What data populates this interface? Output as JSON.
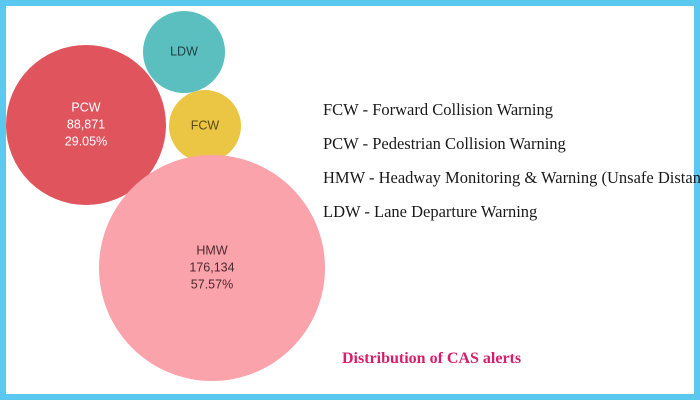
{
  "chart_data": {
    "type": "bubble",
    "title": "",
    "bubbles": [
      {
        "name": "LDW",
        "value_text": "",
        "percent_text": "",
        "color": "#5bbfbf",
        "text_color": "#1f3f3f"
      },
      {
        "name": "PCW",
        "value_text": "88,871",
        "percent_text": "29.05%",
        "color": "#e0555d",
        "text_color": "#ffffff"
      },
      {
        "name": "FCW",
        "value_text": "",
        "percent_text": "",
        "color": "#ebc644",
        "text_color": "#5a4a10"
      },
      {
        "name": "HMW",
        "value_text": "176,134",
        "percent_text": "57.57%",
        "color": "#fba3ab",
        "text_color": "#4a2a2e"
      }
    ],
    "series": [
      {
        "name": "PCW",
        "value": 88871,
        "percent": 29.05
      },
      {
        "name": "HMW",
        "value": 176134,
        "percent": 57.57
      }
    ]
  },
  "legend": [
    "FCW - Forward Collision Warning",
    "PCW - Pedestrian Collision Warning",
    "HMW - Headway Monitoring & Warning (Unsafe Distance)",
    "LDW - Lane Departure Warning"
  ],
  "caption": "Distribution of CAS alerts",
  "colors": {
    "frame": "#5bc8f0",
    "caption": "#d81e6a"
  }
}
